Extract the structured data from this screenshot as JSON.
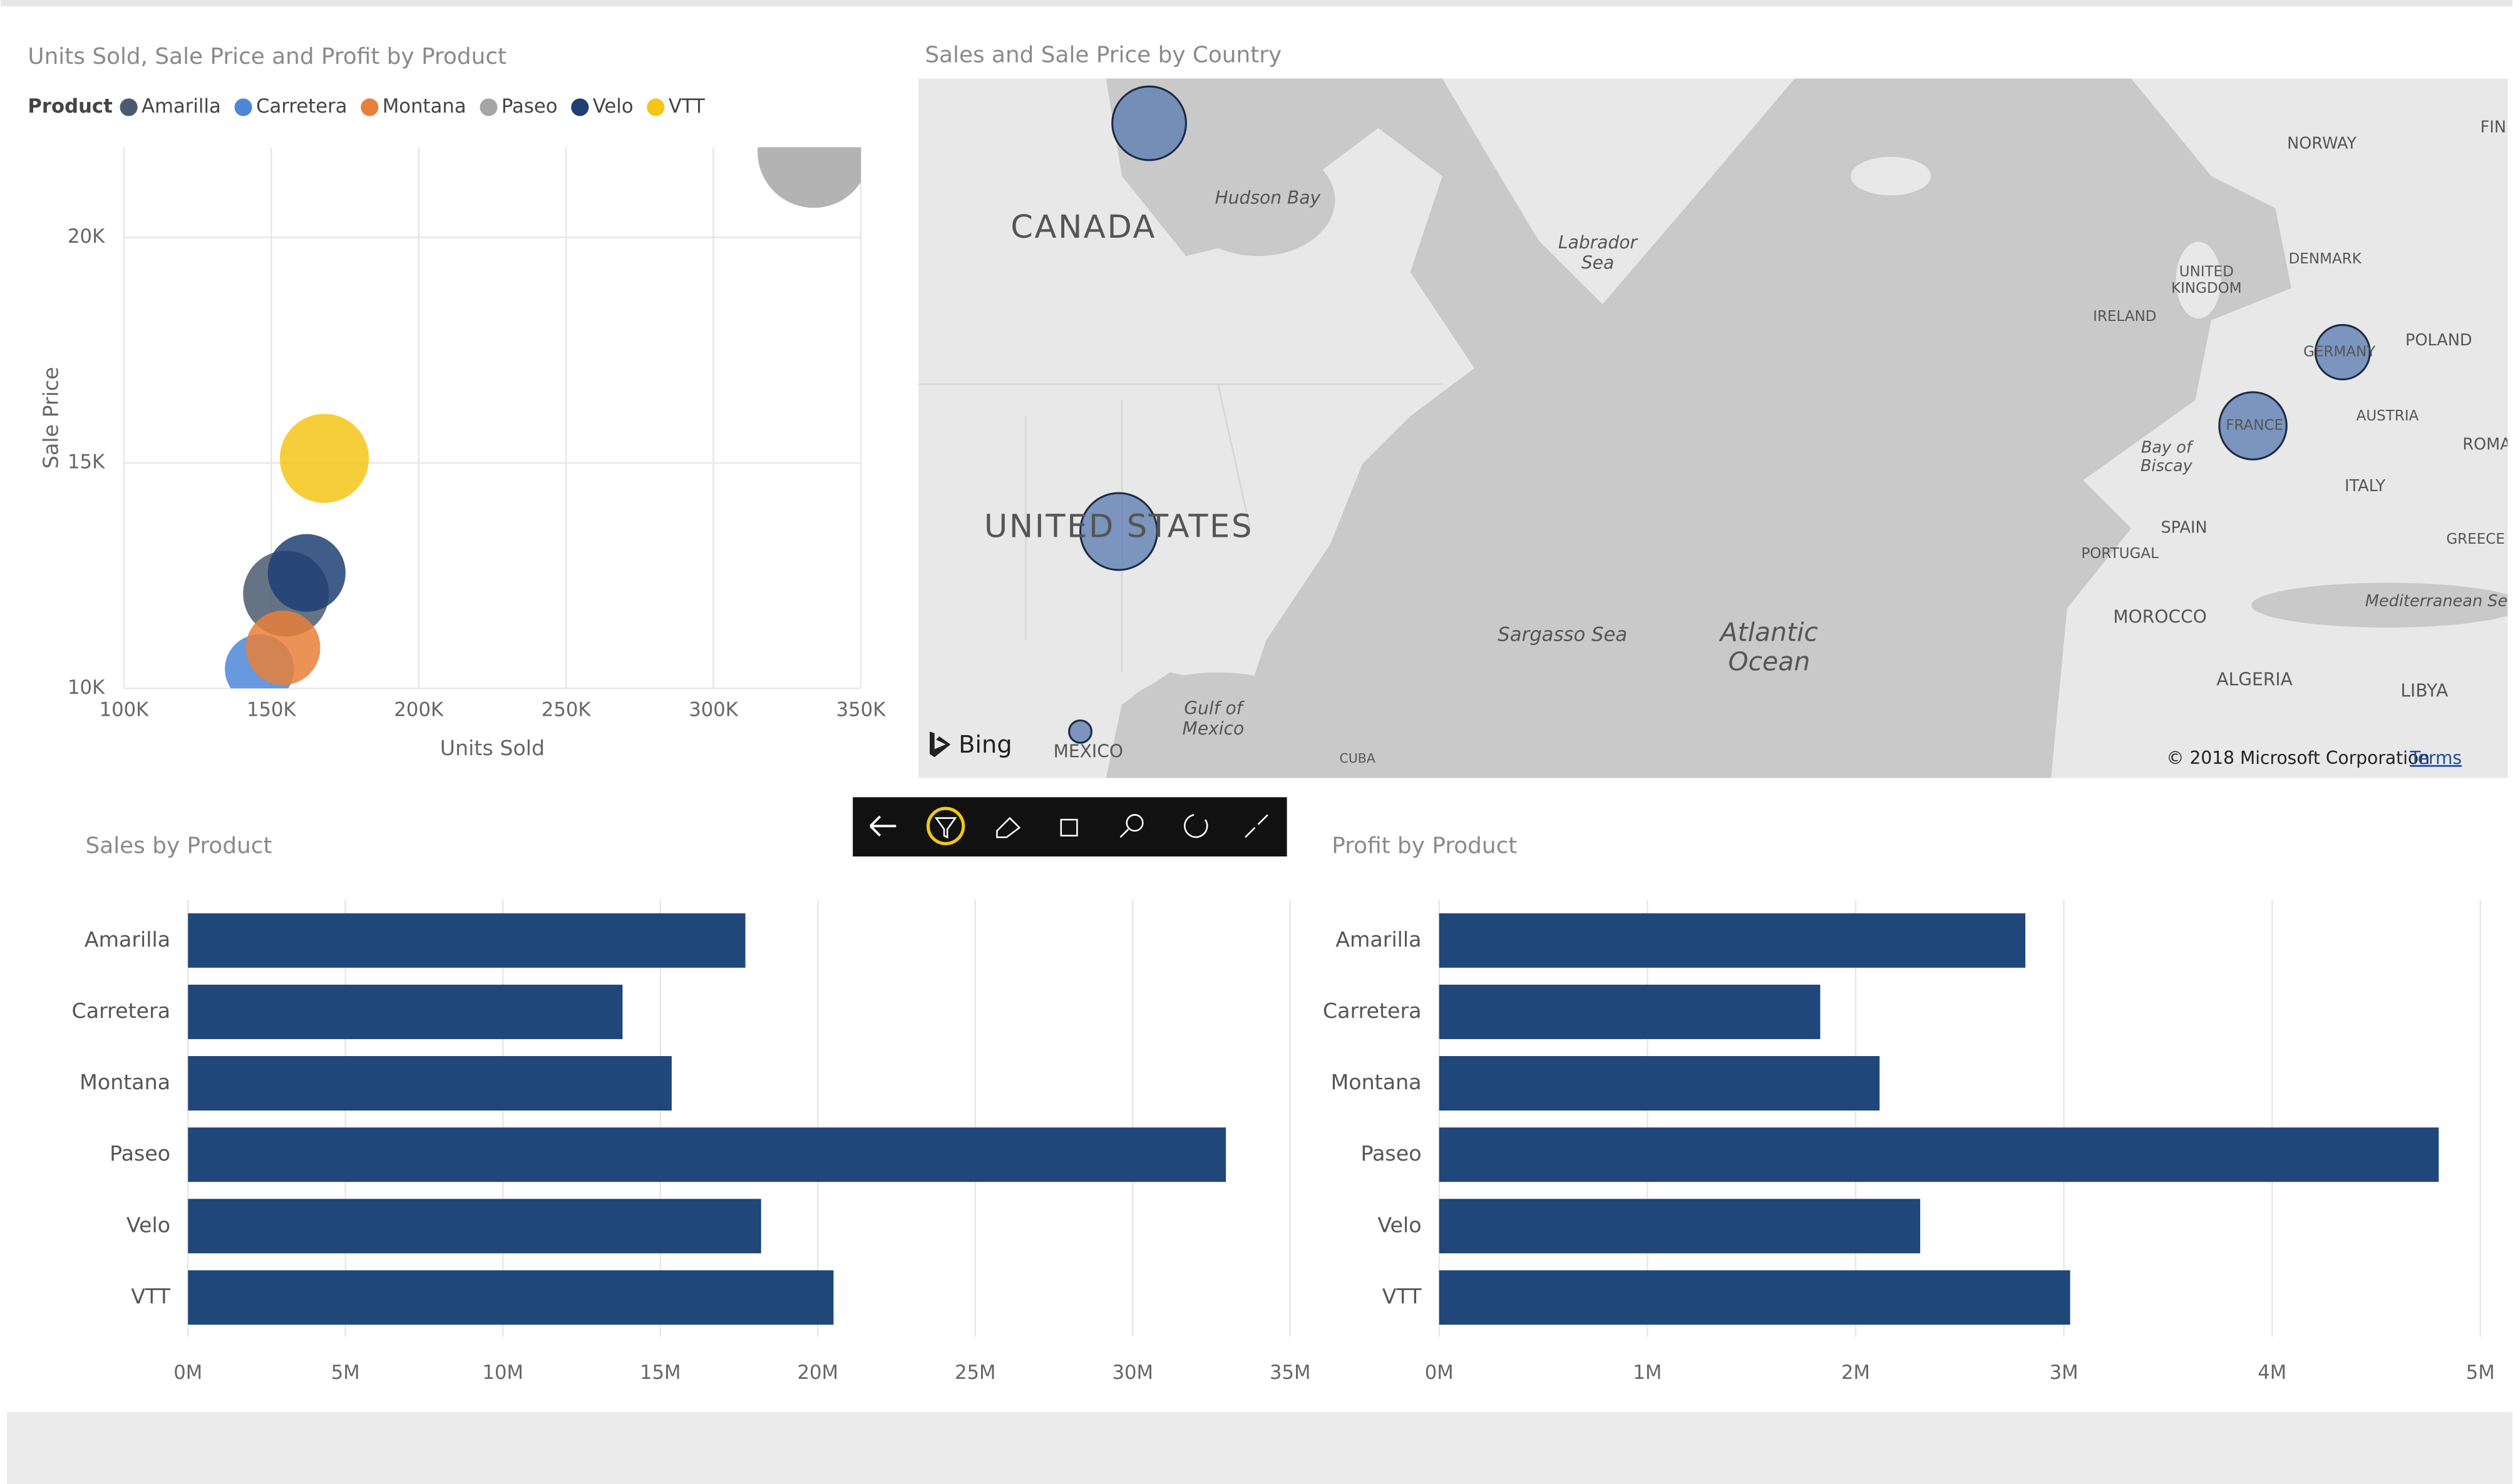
{
  "chart_data": [
    {
      "type": "scatter",
      "title": "Units Sold, Sale Price and Profit by Product",
      "legend_title": "Product",
      "xlabel": "Units Sold",
      "ylabel": "Sale Price",
      "xlim": [
        100000,
        350000
      ],
      "ylim": [
        10000,
        22000
      ],
      "xticks": [
        {
          "value": 100000,
          "label": "100K"
        },
        {
          "value": 150000,
          "label": "150K"
        },
        {
          "value": 200000,
          "label": "200K"
        },
        {
          "value": 250000,
          "label": "250K"
        },
        {
          "value": 300000,
          "label": "300K"
        },
        {
          "value": 350000,
          "label": "350K"
        }
      ],
      "yticks": [
        {
          "value": 10000,
          "label": "10K"
        },
        {
          "value": 15000,
          "label": "15K"
        },
        {
          "value": 20000,
          "label": "20K"
        }
      ],
      "grid": true,
      "series": [
        {
          "name": "Amarilla",
          "color": "#4a5a70",
          "x": [
            155000
          ],
          "values": [
            12100
          ],
          "sizes": [
            2815000
          ]
        },
        {
          "name": "Carretera",
          "color": "#4e86d8",
          "x": [
            146000
          ],
          "values": [
            10430
          ],
          "sizes": [
            1830000
          ]
        },
        {
          "name": "Montana",
          "color": "#e8803a",
          "x": [
            154000
          ],
          "values": [
            10900
          ],
          "sizes": [
            2115000
          ]
        },
        {
          "name": "Paseo",
          "color": "#a6a6a6",
          "x": [
            334000
          ],
          "values": [
            21900
          ],
          "sizes": [
            4800000
          ]
        },
        {
          "name": "Velo",
          "color": "#1f3f73",
          "x": [
            162000
          ],
          "values": [
            12560
          ],
          "sizes": [
            2310000
          ]
        },
        {
          "name": "VTT",
          "color": "#f5c518",
          "x": [
            168000
          ],
          "values": [
            15100
          ],
          "sizes": [
            3030000
          ]
        }
      ]
    },
    {
      "type": "map",
      "title": "Sales and Sale Price by Country",
      "categories": [
        "CANADA",
        "UNITED STATES",
        "MEXICO",
        "FRANCE",
        "GERMANY"
      ],
      "values": [
        24900000,
        27100000,
        2300000,
        20750000,
        13600000
      ],
      "color": "#5f7fb3",
      "labels": [
        [
          "Hudson Bay"
        ],
        [
          "Labrador",
          "Sea"
        ],
        [
          "NORWAY"
        ],
        [
          "DENMARK"
        ],
        [
          "UNITED",
          "KINGDOM"
        ],
        [
          "IRELAND"
        ],
        [
          "POLAND"
        ],
        [
          "AUSTRIA"
        ],
        [
          "Bay of",
          "Biscay"
        ],
        [
          "ITALY"
        ],
        [
          "SPAIN"
        ],
        [
          "PORTUGAL"
        ],
        [
          "GREECE"
        ],
        [
          "ROMA"
        ],
        [
          "FIN"
        ],
        [
          "MOROCCO"
        ],
        [
          "Mediterranean Se"
        ],
        [
          "ALGERIA"
        ],
        [
          "LIBYA"
        ],
        [
          "Sargasso Sea"
        ],
        [
          "Atlantic",
          "Ocean"
        ],
        [
          "Gulf of",
          "Mexico"
        ],
        [
          "CUBA"
        ]
      ],
      "logo": "Bing",
      "attribution": "© 2018 Microsoft Corporation",
      "link": "Terms"
    },
    {
      "type": "bar",
      "title": "Sales by Product",
      "color": "#1f4779",
      "categories": [
        "Amarilla",
        "Carretera",
        "Montana",
        "Paseo",
        "Velo",
        "VTT"
      ],
      "values": [
        17700000,
        13800000,
        15360000,
        32960000,
        18200000,
        20500000
      ],
      "xlim": [
        0,
        35000000
      ],
      "xticks": [
        {
          "value": 0,
          "label": "0M"
        },
        {
          "value": 5000000,
          "label": "5M"
        },
        {
          "value": 10000000,
          "label": "10M"
        },
        {
          "value": 15000000,
          "label": "15M"
        },
        {
          "value": 20000000,
          "label": "20M"
        },
        {
          "value": 25000000,
          "label": "25M"
        },
        {
          "value": 30000000,
          "label": "30M"
        },
        {
          "value": 35000000,
          "label": "35M"
        }
      ],
      "grid": true
    },
    {
      "type": "bar",
      "title": "Profit by Product",
      "color": "#1f4779",
      "categories": [
        "Amarilla",
        "Carretera",
        "Montana",
        "Paseo",
        "Velo",
        "VTT"
      ],
      "values": [
        2815000,
        1830000,
        2115000,
        4800000,
        2310000,
        3030000
      ],
      "xlim": [
        0,
        5000000
      ],
      "xticks": [
        {
          "value": 0,
          "label": "0M"
        },
        {
          "value": 1000000,
          "label": "1M"
        },
        {
          "value": 2000000,
          "label": "2M"
        },
        {
          "value": 3000000,
          "label": "3M"
        },
        {
          "value": 4000000,
          "label": "4M"
        },
        {
          "value": 5000000,
          "label": "5M"
        }
      ],
      "grid": true
    }
  ]
}
